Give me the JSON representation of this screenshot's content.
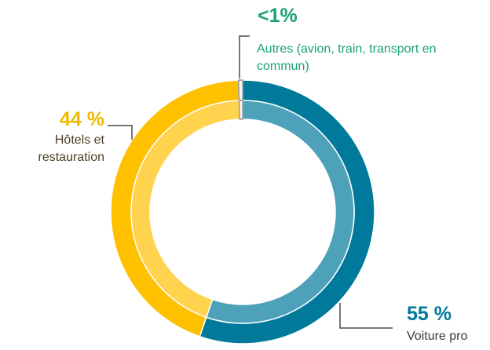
{
  "chart_data": {
    "type": "pie",
    "categories": [
      "Voiture pro",
      "Hôtels et restauration",
      "Autres (avion, train, transport en commun)"
    ],
    "values": [
      55,
      44,
      0.5
    ],
    "value_labels": [
      "55 %",
      "44 %",
      "<1%"
    ],
    "colors": [
      "#00799a",
      "#ffc000",
      "#f4f4f4"
    ],
    "donut": true
  }
}
